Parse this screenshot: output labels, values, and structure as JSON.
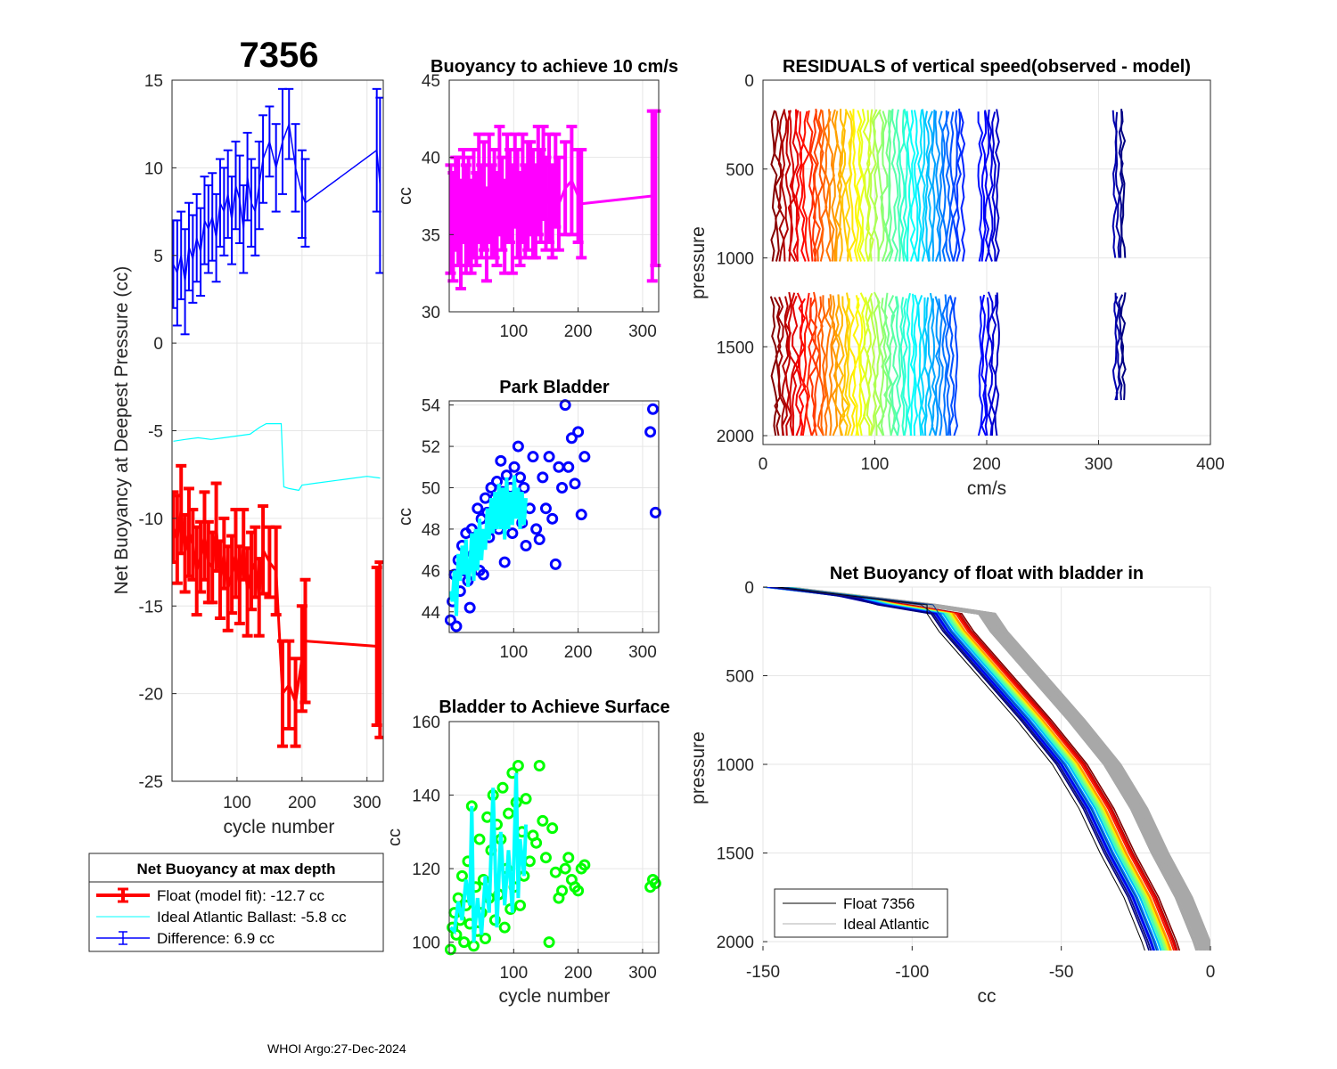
{
  "figure": {
    "float_id": "7356",
    "footer": "WHOI Argo:27-Dec-2024"
  },
  "colors": {
    "float": "#ff0000",
    "ideal": "#00ffff",
    "difference": "#0000ff",
    "buoyancy10": "#ff00ff",
    "park_points": "#0000ff",
    "park_line": "#00ffff",
    "surface_points": "#00ff00",
    "surface_line": "#00ffff",
    "grid": "#e6e6e6",
    "gray_profiles": "#a8a8a8"
  },
  "legend_main": {
    "title": "Net Buoyancy at max depth",
    "items": [
      {
        "label": "Float (model fit): -12.7 cc",
        "color": "#ff0000"
      },
      {
        "label": "Ideal Atlantic Ballast:  -5.8 cc",
        "color": "#00ffff"
      },
      {
        "label": "Difference:   6.9 cc",
        "color": "#0000ff"
      }
    ]
  },
  "legend_profile": {
    "items": [
      {
        "label": "Float 7356",
        "color": "#000000"
      },
      {
        "label": "Ideal Atlantic",
        "color": "#b0b0b0"
      }
    ]
  },
  "chart_data": [
    {
      "id": "main",
      "type": "errorbar",
      "title": "7356",
      "xlabel": "cycle number",
      "ylabel": "Net Buoyancy at Deepest Pressure (cc)",
      "xlim": [
        0,
        325
      ],
      "ylim": [
        -25,
        15
      ],
      "xticks": [
        100,
        200,
        300
      ],
      "yticks": [
        -25,
        -20,
        -15,
        -10,
        -5,
        0,
        5,
        10,
        15
      ],
      "series": [
        {
          "name": "Float (model fit)",
          "x": [
            2,
            8,
            14,
            20,
            26,
            32,
            38,
            44,
            50,
            56,
            62,
            68,
            74,
            80,
            86,
            92,
            98,
            104,
            110,
            116,
            122,
            128,
            134,
            140,
            150,
            160,
            170,
            180,
            190,
            200,
            205,
            315,
            320
          ],
          "y": [
            -10.5,
            -11.2,
            -9.5,
            -12.0,
            -10.8,
            -11.5,
            -13.0,
            -12.2,
            -11.0,
            -12.5,
            -12.8,
            -10.5,
            -13.5,
            -12.0,
            -14.0,
            -13.2,
            -12.0,
            -13.8,
            -11.5,
            -14.2,
            -13.0,
            -12.5,
            -14.5,
            -11.8,
            -12.5,
            -13.0,
            -20.0,
            -19.5,
            -20.5,
            -18.0,
            -17.0,
            -17.3,
            -17.5
          ],
          "err": [
            2.0,
            2.5,
            2.5,
            2.2,
            2.5,
            2.0,
            2.5,
            2.0,
            2.5,
            2.3,
            2.0,
            2.5,
            2.2,
            2.0,
            2.4,
            2.2,
            2.5,
            2.2,
            2.0,
            2.5,
            2.2,
            2.0,
            2.2,
            2.5,
            2.0,
            2.5,
            3.0,
            2.5,
            2.5,
            3.0,
            3.5,
            4.5,
            5.0
          ]
        },
        {
          "name": "Ideal Atlantic Ballast",
          "x": [
            2,
            20,
            40,
            60,
            80,
            100,
            120,
            135,
            145,
            160,
            168,
            172,
            180,
            195,
            200,
            220,
            260,
            300,
            320
          ],
          "y": [
            -5.6,
            -5.5,
            -5.4,
            -5.5,
            -5.4,
            -5.3,
            -5.2,
            -4.8,
            -4.6,
            -4.6,
            -4.6,
            -8.2,
            -8.3,
            -8.4,
            -8.1,
            -8.0,
            -7.8,
            -7.6,
            -7.7
          ]
        },
        {
          "name": "Difference",
          "x": [
            2,
            8,
            14,
            20,
            26,
            32,
            38,
            44,
            50,
            56,
            62,
            68,
            74,
            80,
            86,
            92,
            98,
            104,
            110,
            116,
            122,
            128,
            134,
            140,
            150,
            160,
            170,
            180,
            190,
            200,
            205,
            315,
            320
          ],
          "y": [
            4.5,
            4.0,
            5.0,
            3.5,
            5.5,
            4.8,
            6.0,
            5.2,
            7.0,
            6.5,
            7.2,
            6.0,
            8.0,
            7.5,
            8.5,
            7.0,
            9.0,
            8.2,
            6.5,
            9.5,
            8.0,
            7.5,
            9.0,
            10.5,
            11.5,
            10.0,
            11.5,
            12.5,
            10.0,
            8.5,
            8.0,
            11.0,
            9.0
          ],
          "err": [
            2.5,
            3.0,
            2.5,
            3.0,
            2.5,
            2.5,
            2.5,
            2.5,
            2.5,
            2.5,
            2.5,
            2.5,
            2.5,
            2.5,
            2.5,
            2.5,
            2.5,
            2.5,
            2.5,
            2.5,
            2.5,
            2.5,
            2.5,
            2.5,
            2.0,
            2.5,
            3.0,
            2.0,
            2.5,
            2.5,
            2.5,
            3.5,
            5.0
          ]
        }
      ]
    },
    {
      "id": "buoyancy10",
      "type": "errorbar",
      "title": "Buoyancy to achieve 10 cm/s",
      "xlabel": "",
      "ylabel": "cc",
      "xlim": [
        0,
        325
      ],
      "ylim": [
        30,
        45
      ],
      "xticks": [
        100,
        200,
        300
      ],
      "yticks": [
        30,
        35,
        40,
        45
      ],
      "series": [
        {
          "name": "Buoyancy",
          "x": [
            2,
            6,
            10,
            14,
            18,
            22,
            26,
            30,
            34,
            38,
            42,
            46,
            50,
            54,
            58,
            62,
            66,
            70,
            74,
            78,
            82,
            86,
            90,
            94,
            98,
            102,
            106,
            110,
            114,
            118,
            122,
            126,
            130,
            134,
            138,
            142,
            146,
            150,
            155,
            160,
            165,
            170,
            180,
            190,
            200,
            205,
            315,
            320
          ],
          "y": [
            36.0,
            35.5,
            37.0,
            36.5,
            35.0,
            37.5,
            36.0,
            36.5,
            35.5,
            37.0,
            36.0,
            38.0,
            36.5,
            37.5,
            35.0,
            38.0,
            36.5,
            37.0,
            36.0,
            38.5,
            37.0,
            35.5,
            38.0,
            37.5,
            36.0,
            38.5,
            37.0,
            36.0,
            38.0,
            36.5,
            37.5,
            38.0,
            37.0,
            36.5,
            38.5,
            37.5,
            39.0,
            37.0,
            38.0,
            36.5,
            38.5,
            37.0,
            38.0,
            38.5,
            37.5,
            37.0,
            37.5,
            38.0
          ],
          "err": [
            3.5,
            3.5,
            3.0,
            3.5,
            3.5,
            3.0,
            3.5,
            3.5,
            3.0,
            3.5,
            3.0,
            3.5,
            3.0,
            3.5,
            3.0,
            3.5,
            3.0,
            3.5,
            3.0,
            3.5,
            3.0,
            3.0,
            3.5,
            3.0,
            3.5,
            3.0,
            3.5,
            3.0,
            3.5,
            3.0,
            3.5,
            3.0,
            3.5,
            3.0,
            3.5,
            3.0,
            3.0,
            3.0,
            3.5,
            3.0,
            3.0,
            3.0,
            3.0,
            3.5,
            3.0,
            3.5,
            5.5,
            5.0
          ]
        }
      ]
    },
    {
      "id": "park",
      "type": "scatter",
      "title": "Park Bladder",
      "xlabel": "",
      "ylabel": "cc",
      "xlim": [
        0,
        325
      ],
      "ylim": [
        43,
        54.2
      ],
      "xticks": [
        100,
        200,
        300
      ],
      "yticks": [
        44,
        46,
        48,
        50,
        52,
        54
      ],
      "series": [
        {
          "name": "Park Bladder points",
          "x": [
            2,
            5,
            8,
            11,
            14,
            17,
            20,
            23,
            26,
            29,
            32,
            35,
            38,
            41,
            44,
            47,
            50,
            53,
            56,
            59,
            62,
            65,
            68,
            71,
            74,
            77,
            80,
            83,
            86,
            89,
            92,
            95,
            98,
            101,
            104,
            107,
            110,
            113,
            116,
            119,
            125,
            130,
            135,
            140,
            145,
            150,
            155,
            160,
            165,
            170,
            175,
            180,
            185,
            190,
            195,
            200,
            205,
            210,
            312,
            316,
            320
          ],
          "y": [
            43.6,
            44.5,
            45.8,
            43.3,
            46.5,
            45.0,
            47.2,
            46.0,
            47.8,
            45.5,
            44.2,
            48.0,
            46.8,
            47.5,
            49.0,
            46.0,
            48.5,
            45.8,
            49.5,
            48.8,
            47.6,
            50.0,
            48.2,
            49.5,
            50.3,
            48.0,
            51.3,
            49.8,
            46.4,
            50.6,
            48.5,
            50.0,
            47.8,
            51.0,
            49.5,
            52.0,
            50.5,
            48.3,
            50.0,
            47.2,
            49.0,
            51.5,
            48.0,
            47.5,
            50.5,
            49.0,
            51.5,
            48.5,
            46.3,
            51.0,
            50.0,
            54.0,
            51.0,
            52.4,
            50.2,
            52.7,
            48.7,
            51.5,
            52.7,
            53.8,
            48.8
          ]
        },
        {
          "name": "Park Bladder line",
          "x": [
            2,
            5,
            8,
            11,
            14,
            17,
            20,
            23,
            26,
            29,
            32,
            35,
            38,
            41,
            44,
            47,
            50,
            53,
            56,
            59,
            62,
            65,
            68,
            71,
            74,
            77,
            80,
            83,
            86,
            89,
            92,
            95,
            98,
            101,
            104,
            107,
            110,
            113,
            116,
            119
          ],
          "y": [
            45.0,
            44.5,
            46.0,
            43.8,
            46.8,
            45.5,
            47.2,
            45.8,
            47.5,
            45.2,
            46.0,
            47.8,
            45.5,
            48.0,
            46.0,
            48.5,
            46.5,
            48.0,
            47.0,
            49.0,
            47.5,
            49.5,
            47.8,
            49.8,
            48.0,
            50.2,
            48.0,
            50.0,
            47.5,
            50.5,
            48.0,
            49.8,
            48.2,
            50.6,
            48.5,
            50.0,
            48.0,
            49.8,
            48.2,
            49.5
          ]
        }
      ]
    },
    {
      "id": "surface",
      "type": "scatter",
      "title": "Bladder to Achieve Surface",
      "xlabel": "cycle number",
      "ylabel": "cc",
      "xlim": [
        0,
        325
      ],
      "ylim": [
        97,
        160
      ],
      "xticks": [
        100,
        200,
        300
      ],
      "yticks": [
        100,
        120,
        140,
        160
      ],
      "series": [
        {
          "name": "Surface points",
          "x": [
            2,
            5,
            8,
            11,
            14,
            17,
            20,
            23,
            26,
            29,
            32,
            35,
            38,
            41,
            44,
            47,
            50,
            53,
            56,
            59,
            62,
            65,
            68,
            71,
            74,
            77,
            80,
            83,
            86,
            89,
            92,
            95,
            98,
            101,
            104,
            107,
            110,
            113,
            116,
            119,
            125,
            130,
            135,
            140,
            145,
            150,
            155,
            160,
            165,
            170,
            175,
            180,
            185,
            190,
            195,
            200,
            205,
            210,
            312,
            316,
            320
          ],
          "y": [
            98,
            104,
            108,
            102,
            112,
            106,
            118,
            100,
            110,
            122,
            105,
            137,
            99,
            115,
            103,
            128,
            108,
            117,
            101,
            134,
            112,
            125,
            140,
            106,
            132,
            113,
            128,
            142,
            104,
            120,
            135,
            109,
            146,
            115,
            138,
            148,
            110,
            130,
            118,
            139,
            122,
            129,
            127,
            148,
            133,
            123,
            100,
            131,
            119,
            112,
            114,
            120,
            123,
            117,
            115,
            114,
            120,
            121,
            115,
            117,
            116
          ]
        },
        {
          "name": "Surface line",
          "x": [
            2,
            8,
            14,
            20,
            26,
            32,
            35,
            38,
            44,
            50,
            56,
            62,
            68,
            74,
            80,
            86,
            92,
            98,
            104,
            107,
            110,
            116,
            119
          ],
          "y": [
            104,
            103,
            111,
            106,
            117,
            110,
            137,
            100,
            112,
            102,
            118,
            108,
            142,
            104,
            130,
            110,
            125,
            108,
            146,
            112,
            128,
            118,
            132
          ]
        }
      ]
    },
    {
      "id": "residuals",
      "type": "line",
      "title": "RESIDUALS of vertical speed(observed - model)",
      "xlabel": "cm/s",
      "ylabel": "pressure",
      "xlim": [
        0,
        400
      ],
      "ylim": [
        2050,
        0
      ],
      "xticks": [
        0,
        100,
        200,
        300,
        400
      ],
      "yticks": [
        0,
        500,
        1000,
        1500,
        2000
      ],
      "bands": [
        {
          "name": "descent",
          "p_top": 160,
          "p_bottom": 1020
        },
        {
          "name": "ascent",
          "p_top": 1190,
          "p_bottom": 2000
        }
      ],
      "offsets_start": 10,
      "offsets_end": 322,
      "profile_count": 64
    },
    {
      "id": "net_buoyancy_profile",
      "type": "line",
      "title": "Net Buoyancy of float with bladder in",
      "xlabel": "cc",
      "ylabel": "pressure",
      "xlim": [
        -150,
        0
      ],
      "ylim": [
        2050,
        0
      ],
      "xticks": [
        -150,
        -100,
        -50,
        0
      ],
      "yticks": [
        0,
        500,
        1000,
        1500,
        2000
      ],
      "reference_profile": {
        "p": [
          0,
          50,
          100,
          150,
          250,
          500,
          750,
          1000,
          1250,
          1500,
          1750,
          2000,
          2050
        ],
        "x": [
          -150,
          -125,
          -100,
          -82,
          -78,
          -65,
          -52,
          -40,
          -31,
          -24,
          -16,
          -10,
          -9
        ]
      }
    }
  ]
}
